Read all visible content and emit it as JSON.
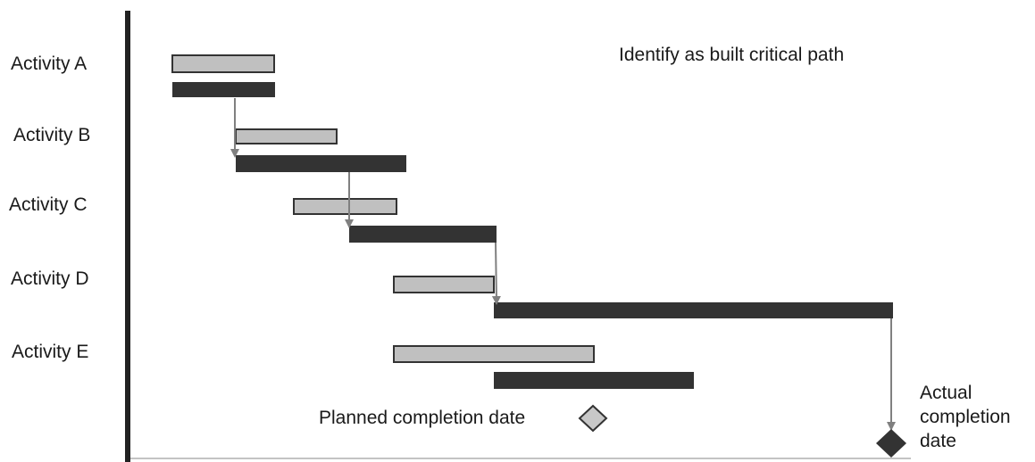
{
  "title": "Identify as built critical path",
  "activities": [
    {
      "label": "Activity A"
    },
    {
      "label": "Activity B"
    },
    {
      "label": "Activity C"
    },
    {
      "label": "Activity D"
    },
    {
      "label": "Activity E"
    }
  ],
  "legend": {
    "planned_completion": "Planned completion date",
    "actual_completion": [
      "Actual",
      "completion",
      "date"
    ]
  },
  "colors": {
    "planned_bar": "#c0c0c0",
    "actual_bar": "#333333",
    "arrow": "#808080",
    "axis": "#222222"
  },
  "icons": {
    "planned_marker": "diamond-outline-icon",
    "actual_marker": "diamond-filled-icon"
  }
}
